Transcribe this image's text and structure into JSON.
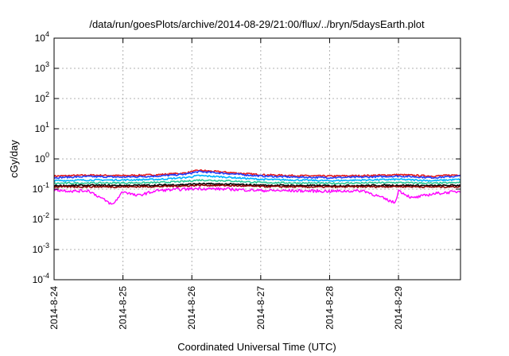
{
  "chart_data": {
    "type": "line",
    "title": "/data/run/goesPlots/archive/2014-08-29/21:00/flux/../bryn/5daysEarth.plot",
    "xlabel": "Coordinated Universal Time (UTC)",
    "ylabel": "cGy/day",
    "yscale": "log",
    "ylim_exponents": [
      -4,
      4
    ],
    "y_ticks": [
      {
        "base": "10",
        "exp": "4"
      },
      {
        "base": "10",
        "exp": "3"
      },
      {
        "base": "10",
        "exp": "2"
      },
      {
        "base": "10",
        "exp": "1"
      },
      {
        "base": "10",
        "exp": "0"
      },
      {
        "base": "10",
        "exp": "-1"
      },
      {
        "base": "10",
        "exp": "-2"
      },
      {
        "base": "10",
        "exp": "-3"
      },
      {
        "base": "10",
        "exp": "-4"
      }
    ],
    "x_ticks": [
      "2014-8-24",
      "2014-8-25",
      "2014-8-26",
      "2014-8-27",
      "2014-8-28",
      "2014-8-29"
    ],
    "xlim_days": [
      0,
      5.9
    ],
    "grid": true,
    "series": [
      {
        "color": "#e41a1c",
        "values": [
          [
            0.0,
            0.27
          ],
          [
            0.5,
            0.29
          ],
          [
            1.0,
            0.28
          ],
          [
            1.5,
            0.3
          ],
          [
            1.9,
            0.34
          ],
          [
            2.1,
            0.42
          ],
          [
            2.5,
            0.36
          ],
          [
            3.0,
            0.3
          ],
          [
            3.5,
            0.28
          ],
          [
            4.0,
            0.27
          ],
          [
            4.5,
            0.28
          ],
          [
            5.0,
            0.3
          ],
          [
            5.5,
            0.27
          ],
          [
            5.9,
            0.3
          ]
        ]
      },
      {
        "color": "#1f3fff",
        "values": [
          [
            0.0,
            0.24
          ],
          [
            0.5,
            0.26
          ],
          [
            1.0,
            0.25
          ],
          [
            1.5,
            0.27
          ],
          [
            1.9,
            0.31
          ],
          [
            2.1,
            0.38
          ],
          [
            2.5,
            0.33
          ],
          [
            3.0,
            0.27
          ],
          [
            3.5,
            0.25
          ],
          [
            4.0,
            0.24
          ],
          [
            4.5,
            0.25
          ],
          [
            5.0,
            0.27
          ],
          [
            5.5,
            0.24
          ],
          [
            5.9,
            0.27
          ]
        ]
      },
      {
        "color": "#00b3ff",
        "values": [
          [
            0.0,
            0.19
          ],
          [
            0.5,
            0.2
          ],
          [
            1.0,
            0.2
          ],
          [
            1.5,
            0.21
          ],
          [
            1.9,
            0.24
          ],
          [
            2.1,
            0.28
          ],
          [
            2.5,
            0.25
          ],
          [
            3.0,
            0.21
          ],
          [
            3.5,
            0.2
          ],
          [
            4.0,
            0.19
          ],
          [
            4.5,
            0.2
          ],
          [
            5.0,
            0.21
          ],
          [
            5.5,
            0.19
          ],
          [
            5.9,
            0.21
          ]
        ]
      },
      {
        "color": "#2ac99a",
        "values": [
          [
            0.0,
            0.155
          ],
          [
            0.5,
            0.16
          ],
          [
            1.0,
            0.16
          ],
          [
            1.5,
            0.165
          ],
          [
            1.9,
            0.18
          ],
          [
            2.1,
            0.2
          ],
          [
            2.5,
            0.19
          ],
          [
            3.0,
            0.165
          ],
          [
            3.5,
            0.16
          ],
          [
            4.0,
            0.155
          ],
          [
            4.5,
            0.16
          ],
          [
            5.0,
            0.165
          ],
          [
            5.5,
            0.155
          ],
          [
            5.9,
            0.165
          ]
        ]
      },
      {
        "color": "#000000",
        "values": [
          [
            0.0,
            0.13
          ],
          [
            0.5,
            0.133
          ],
          [
            1.0,
            0.132
          ],
          [
            1.5,
            0.135
          ],
          [
            1.9,
            0.142
          ],
          [
            2.1,
            0.15
          ],
          [
            2.5,
            0.146
          ],
          [
            3.0,
            0.135
          ],
          [
            3.5,
            0.132
          ],
          [
            4.0,
            0.13
          ],
          [
            4.5,
            0.132
          ],
          [
            5.0,
            0.135
          ],
          [
            5.5,
            0.13
          ],
          [
            5.9,
            0.134
          ]
        ]
      },
      {
        "color": "#8b0000",
        "values": [
          [
            0.0,
            0.118
          ],
          [
            0.5,
            0.12
          ],
          [
            1.0,
            0.119
          ],
          [
            1.5,
            0.122
          ],
          [
            1.9,
            0.128
          ],
          [
            2.1,
            0.135
          ],
          [
            2.5,
            0.132
          ],
          [
            3.0,
            0.122
          ],
          [
            3.5,
            0.119
          ],
          [
            4.0,
            0.118
          ],
          [
            4.5,
            0.12
          ],
          [
            5.0,
            0.122
          ],
          [
            5.5,
            0.118
          ],
          [
            5.9,
            0.121
          ]
        ]
      },
      {
        "color": "#ff00ff",
        "values": [
          [
            0.0,
            0.095
          ],
          [
            0.3,
            0.085
          ],
          [
            0.5,
            0.09
          ],
          [
            0.85,
            0.03
          ],
          [
            1.0,
            0.085
          ],
          [
            1.2,
            0.06
          ],
          [
            1.5,
            0.09
          ],
          [
            1.9,
            0.1
          ],
          [
            2.1,
            0.105
          ],
          [
            2.5,
            0.1
          ],
          [
            3.0,
            0.09
          ],
          [
            3.5,
            0.088
          ],
          [
            4.0,
            0.085
          ],
          [
            4.5,
            0.088
          ],
          [
            4.95,
            0.035
          ],
          [
            5.0,
            0.09
          ],
          [
            5.2,
            0.05
          ],
          [
            5.5,
            0.07
          ],
          [
            5.9,
            0.085
          ]
        ]
      }
    ]
  }
}
